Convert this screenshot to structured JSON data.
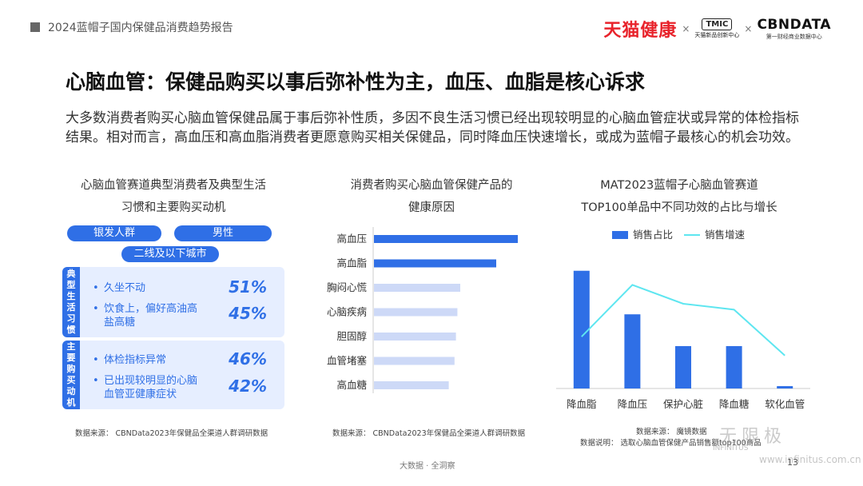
{
  "header": {
    "report_title": "2024蓝帽子国内保健品消费趋势报告",
    "logo_tmall": "天猫健康",
    "logo_tmic": "TMIC",
    "logo_tmic_sub": "天猫新品创新中心",
    "logo_cbn": "CBNDATA",
    "logo_cbn_sub": "第一财经商业数据中心",
    "separator": "×"
  },
  "title": "心脑血管：保健品购买以事后弥补性为主，血压、血脂是核心诉求",
  "description": "大多数消费者购买心脑血管保健品属于事后弥补性质，多因不良生活习惯已经出现较明显的心脑血管症状或异常的体检指标结果。相对而言，高血压和高血脂消费者更愿意购买相关保健品，同时降血压快速增长，或成为蓝帽子最核心的机会功效。",
  "left": {
    "title_line1": "心脑血管赛道典型消费者及典型生活",
    "title_line2": "习惯和主要购买动机",
    "pills": [
      "银发人群",
      "男性",
      "二线及以下城市"
    ],
    "bullet": "•",
    "habits": {
      "tab": [
        "典",
        "型",
        "生",
        "活",
        "习",
        "惯"
      ],
      "items": [
        {
          "text": "久坐不动",
          "pct": "51%"
        },
        {
          "text": "饮食上，偏好高油高盐高糖",
          "pct": "45%"
        }
      ]
    },
    "motives": {
      "tab": [
        "主",
        "要",
        "购",
        "买",
        "动",
        "机"
      ],
      "items": [
        {
          "text": "体检指标异常",
          "pct": "46%"
        },
        {
          "text": "已出现较明显的心脑血管亚健康症状",
          "pct": "42%"
        }
      ]
    },
    "source": "数据来源：  CBNData2023年保健品全渠道人群调研数据"
  },
  "middle": {
    "title_line1": "消费者购买心脑血管保健产品的",
    "title_line2": "健康原因",
    "source": "数据来源：  CBNData2023年保健品全渠道人群调研数据"
  },
  "right": {
    "title_line1": "MAT2023蓝帽子心脑血管赛道",
    "title_line2": "TOP100单品中不同功效的占比与增长",
    "source_line1": "数据来源：  魔镜数据",
    "source_line2": "数据说明：  选取心脑血管保健产品销售额top100商品"
  },
  "chart_data": [
    {
      "type": "bar",
      "orientation": "horizontal",
      "categories": [
        "高血压",
        "高血脂",
        "胸闷心慌",
        "心脑疾病",
        "胆固醇",
        "血管堵塞",
        "高血糖"
      ],
      "values": [
        100,
        85,
        60,
        58,
        57,
        56,
        52
      ],
      "colors": [
        "#2f6fe6",
        "#2f6fe6",
        "#cdd9f7",
        "#cdd9f7",
        "#cdd9f7",
        "#cdd9f7",
        "#cdd9f7"
      ],
      "xlim": [
        0,
        100
      ]
    },
    {
      "type": "bar",
      "categories": [
        "降血脂",
        "降血压",
        "保护心脏",
        "降血糖",
        "软化血管"
      ],
      "series": [
        {
          "name": "销售占比",
          "type": "bar",
          "color": "#2f6fe6",
          "values": [
            100,
            63,
            36,
            36,
            2
          ]
        },
        {
          "name": "销售增速",
          "type": "line",
          "color": "#5ee6f0",
          "values": [
            44,
            88,
            72,
            67,
            28
          ]
        }
      ],
      "ylim": [
        0,
        110
      ],
      "legend": "top-center"
    }
  ],
  "footer": {
    "brand": "大数据 · 全洞察",
    "page": "13",
    "watermark": "无限极",
    "watermark_sub": "INFINITUS",
    "watermark_url": "www.infinitus.com.cn"
  }
}
